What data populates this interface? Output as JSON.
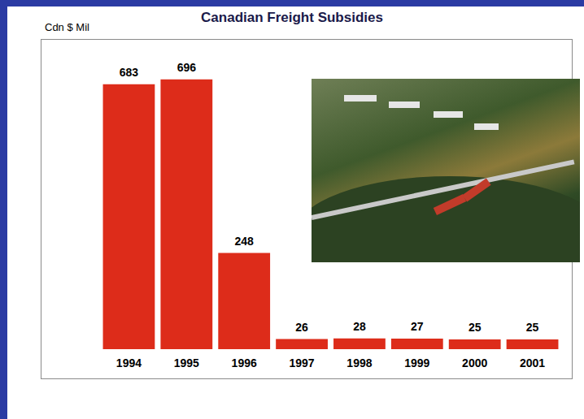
{
  "chart_data": {
    "type": "bar",
    "title": "Canadian Freight Subsidies",
    "ylabel": "Cdn $ Mil",
    "categories": [
      "1994",
      "1995",
      "1996",
      "1997",
      "1998",
      "1999",
      "2000",
      "2001"
    ],
    "values": [
      683,
      696,
      248,
      26,
      28,
      27,
      25,
      25
    ],
    "color": "#dd2c1a",
    "ylim": [
      0,
      800
    ],
    "grid": false,
    "data_labels": true,
    "tick_labels": "x"
  }
}
